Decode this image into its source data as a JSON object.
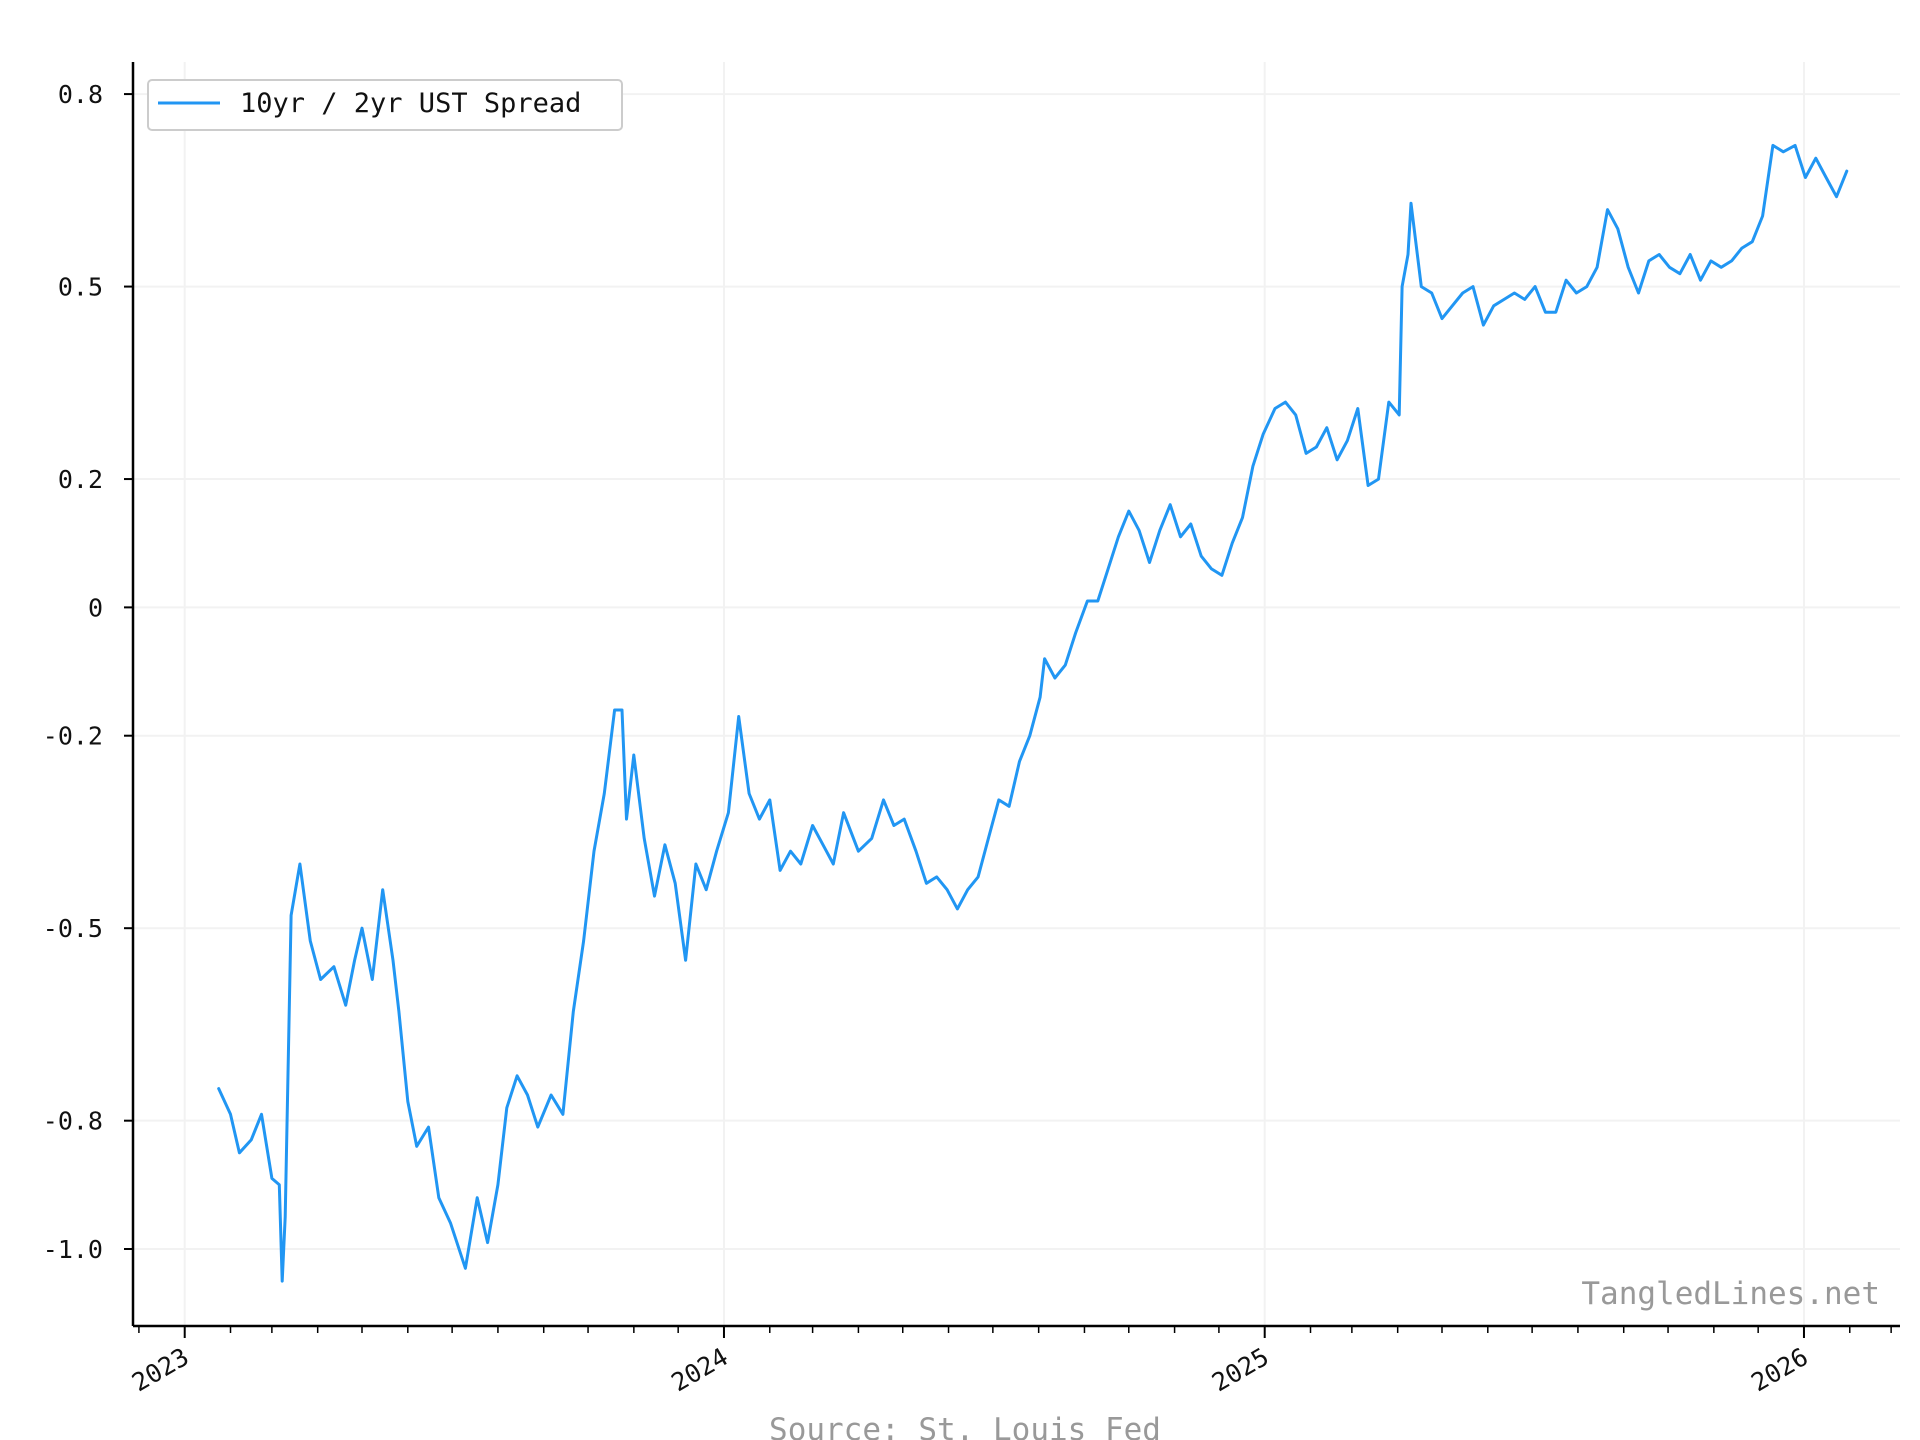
{
  "chart_data": {
    "type": "line",
    "title": "",
    "xlabel": "",
    "ylabel": "",
    "xlim": [
      "2022-11-27",
      "2026-03-07"
    ],
    "ylim": [
      -1.12,
      0.85
    ],
    "grid": true,
    "legend_position": "top-left",
    "yticks": [
      {
        "value": 0.8,
        "label": "0.8"
      },
      {
        "value": 0.5,
        "label": "0.5"
      },
      {
        "value": 0.2,
        "label": "0.2"
      },
      {
        "value": 0.0,
        "label": "0"
      },
      {
        "value": -0.2,
        "label": "-0.2"
      },
      {
        "value": -0.5,
        "label": "-0.5"
      },
      {
        "value": -0.8,
        "label": "-0.8"
      },
      {
        "value": -1.0,
        "label": "-1.0"
      }
    ],
    "xticks": [
      {
        "date": "2023-01-01",
        "label": "2023"
      },
      {
        "date": "2024-01-01",
        "label": "2024"
      },
      {
        "date": "2025-01-01",
        "label": "2025"
      },
      {
        "date": "2026-01-01",
        "label": "2026"
      }
    ],
    "series": [
      {
        "name": "10yr / 2yr UST Spread",
        "color": "#2196f3",
        "x": [
          "2023-01-24",
          "2023-02-01",
          "2023-02-07",
          "2023-02-15",
          "2023-02-22",
          "2023-03-01",
          "2023-03-06",
          "2023-03-08",
          "2023-03-10",
          "2023-03-14",
          "2023-03-20",
          "2023-03-27",
          "2023-04-03",
          "2023-04-12",
          "2023-04-20",
          "2023-04-26",
          "2023-05-01",
          "2023-05-08",
          "2023-05-15",
          "2023-05-22",
          "2023-05-26",
          "2023-06-01",
          "2023-06-07",
          "2023-06-15",
          "2023-06-22",
          "2023-06-30",
          "2023-07-10",
          "2023-07-18",
          "2023-07-25",
          "2023-08-01",
          "2023-08-07",
          "2023-08-14",
          "2023-08-21",
          "2023-08-28",
          "2023-09-06",
          "2023-09-14",
          "2023-09-21",
          "2023-09-28",
          "2023-10-05",
          "2023-10-12",
          "2023-10-19",
          "2023-10-24",
          "2023-10-27",
          "2023-11-01",
          "2023-11-08",
          "2023-11-15",
          "2023-11-22",
          "2023-11-29",
          "2023-12-06",
          "2023-12-13",
          "2023-12-20",
          "2023-12-27",
          "2024-01-04",
          "2024-01-11",
          "2024-01-18",
          "2024-01-25",
          "2024-02-01",
          "2024-02-08",
          "2024-02-15",
          "2024-02-22",
          "2024-03-01",
          "2024-03-08",
          "2024-03-15",
          "2024-03-22",
          "2024-04-01",
          "2024-04-10",
          "2024-04-18",
          "2024-04-25",
          "2024-05-02",
          "2024-05-10",
          "2024-05-17",
          "2024-05-24",
          "2024-05-31",
          "2024-06-07",
          "2024-06-14",
          "2024-06-21",
          "2024-06-28",
          "2024-07-05",
          "2024-07-12",
          "2024-07-19",
          "2024-07-26",
          "2024-08-02",
          "2024-08-05",
          "2024-08-12",
          "2024-08-19",
          "2024-08-26",
          "2024-09-03",
          "2024-09-10",
          "2024-09-17",
          "2024-09-24",
          "2024-10-01",
          "2024-10-08",
          "2024-10-15",
          "2024-10-22",
          "2024-10-29",
          "2024-11-05",
          "2024-11-12",
          "2024-11-19",
          "2024-11-26",
          "2024-12-03",
          "2024-12-10",
          "2024-12-17",
          "2024-12-24",
          "2024-12-31",
          "2025-01-08",
          "2025-01-15",
          "2025-01-22",
          "2025-01-29",
          "2025-02-05",
          "2025-02-12",
          "2025-02-19",
          "2025-02-26",
          "2025-03-05",
          "2025-03-12",
          "2025-03-19",
          "2025-03-26",
          "2025-04-02",
          "2025-04-04",
          "2025-04-08",
          "2025-04-10",
          "2025-04-17",
          "2025-04-24",
          "2025-05-01",
          "2025-05-08",
          "2025-05-15",
          "2025-05-22",
          "2025-05-29",
          "2025-06-05",
          "2025-06-12",
          "2025-06-19",
          "2025-06-26",
          "2025-07-03",
          "2025-07-10",
          "2025-07-17",
          "2025-07-24",
          "2025-07-31",
          "2025-08-07",
          "2025-08-14",
          "2025-08-21",
          "2025-08-28",
          "2025-09-04",
          "2025-09-11",
          "2025-09-18",
          "2025-09-25",
          "2025-10-02",
          "2025-10-09",
          "2025-10-16",
          "2025-10-23",
          "2025-10-30",
          "2025-11-06",
          "2025-11-13",
          "2025-11-20",
          "2025-11-27",
          "2025-12-04",
          "2025-12-11",
          "2025-12-18",
          "2025-12-26",
          "2026-01-02",
          "2026-01-09",
          "2026-01-16",
          "2026-01-23",
          "2026-01-30"
        ],
        "y": [
          -0.75,
          -0.79,
          -0.85,
          -0.83,
          -0.79,
          -0.89,
          -0.9,
          -1.05,
          -0.95,
          -0.48,
          -0.4,
          -0.52,
          -0.58,
          -0.56,
          -0.62,
          -0.55,
          -0.5,
          -0.58,
          -0.44,
          -0.55,
          -0.63,
          -0.77,
          -0.84,
          -0.81,
          -0.92,
          -0.96,
          -1.03,
          -0.92,
          -0.99,
          -0.9,
          -0.78,
          -0.73,
          -0.76,
          -0.81,
          -0.76,
          -0.79,
          -0.63,
          -0.52,
          -0.38,
          -0.29,
          -0.16,
          -0.16,
          -0.33,
          -0.23,
          -0.36,
          -0.45,
          -0.37,
          -0.43,
          -0.55,
          -0.4,
          -0.44,
          -0.38,
          -0.32,
          -0.17,
          -0.29,
          -0.33,
          -0.3,
          -0.41,
          -0.38,
          -0.4,
          -0.34,
          -0.37,
          -0.4,
          -0.32,
          -0.38,
          -0.36,
          -0.3,
          -0.34,
          -0.33,
          -0.38,
          -0.43,
          -0.42,
          -0.44,
          -0.47,
          -0.44,
          -0.42,
          -0.36,
          -0.3,
          -0.31,
          -0.24,
          -0.2,
          -0.14,
          -0.08,
          -0.11,
          -0.09,
          -0.04,
          0.01,
          0.01,
          0.06,
          0.11,
          0.15,
          0.12,
          0.07,
          0.12,
          0.16,
          0.11,
          0.13,
          0.08,
          0.06,
          0.05,
          0.1,
          0.14,
          0.22,
          0.27,
          0.31,
          0.32,
          0.3,
          0.24,
          0.25,
          0.28,
          0.23,
          0.26,
          0.31,
          0.19,
          0.2,
          0.32,
          0.3,
          0.5,
          0.55,
          0.63,
          0.5,
          0.49,
          0.45,
          0.47,
          0.49,
          0.5,
          0.44,
          0.47,
          0.48,
          0.49,
          0.48,
          0.5,
          0.46,
          0.46,
          0.51,
          0.49,
          0.5,
          0.53,
          0.62,
          0.59,
          0.53,
          0.49,
          0.54,
          0.55,
          0.53,
          0.52,
          0.55,
          0.51,
          0.54,
          0.53,
          0.54,
          0.56,
          0.57,
          0.61,
          0.72,
          0.71,
          0.72,
          0.67,
          0.7,
          0.67,
          0.64,
          0.68
        ]
      }
    ]
  },
  "legend": {
    "label": "10yr / 2yr UST Spread"
  },
  "watermark": "TangledLines.net",
  "source": "Source: St. Louis Fed"
}
